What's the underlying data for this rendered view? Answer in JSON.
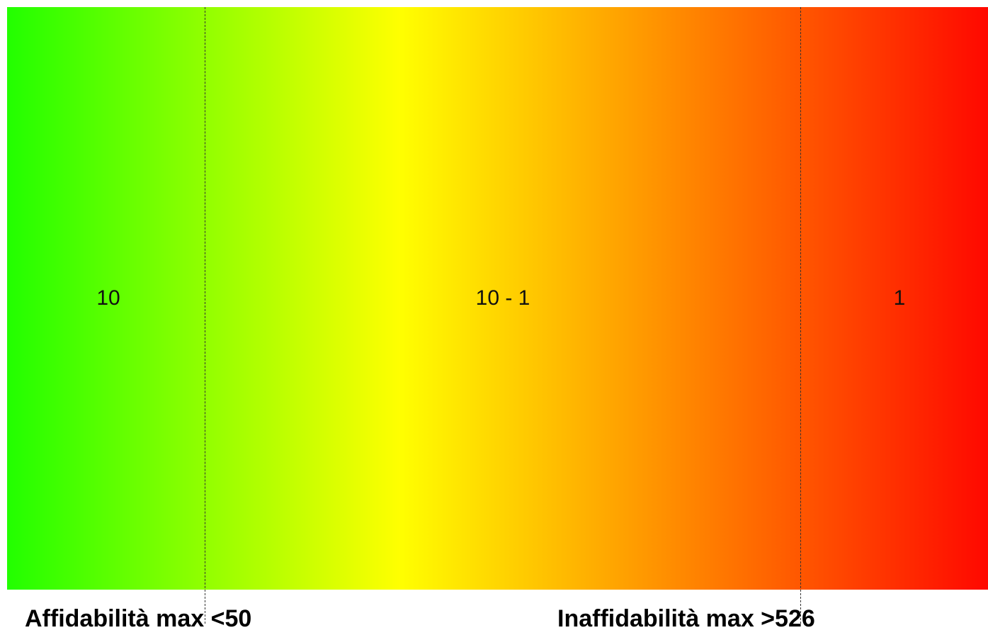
{
  "gradient": {
    "colors": [
      "#22ff00",
      "#ffff00",
      "#ff0800"
    ]
  },
  "zones": {
    "left": "10",
    "middle": "10 - 1",
    "right": "1"
  },
  "thresholds": {
    "low": "Affidabilità max <50",
    "high": "Inaffidabilità max >526"
  }
}
